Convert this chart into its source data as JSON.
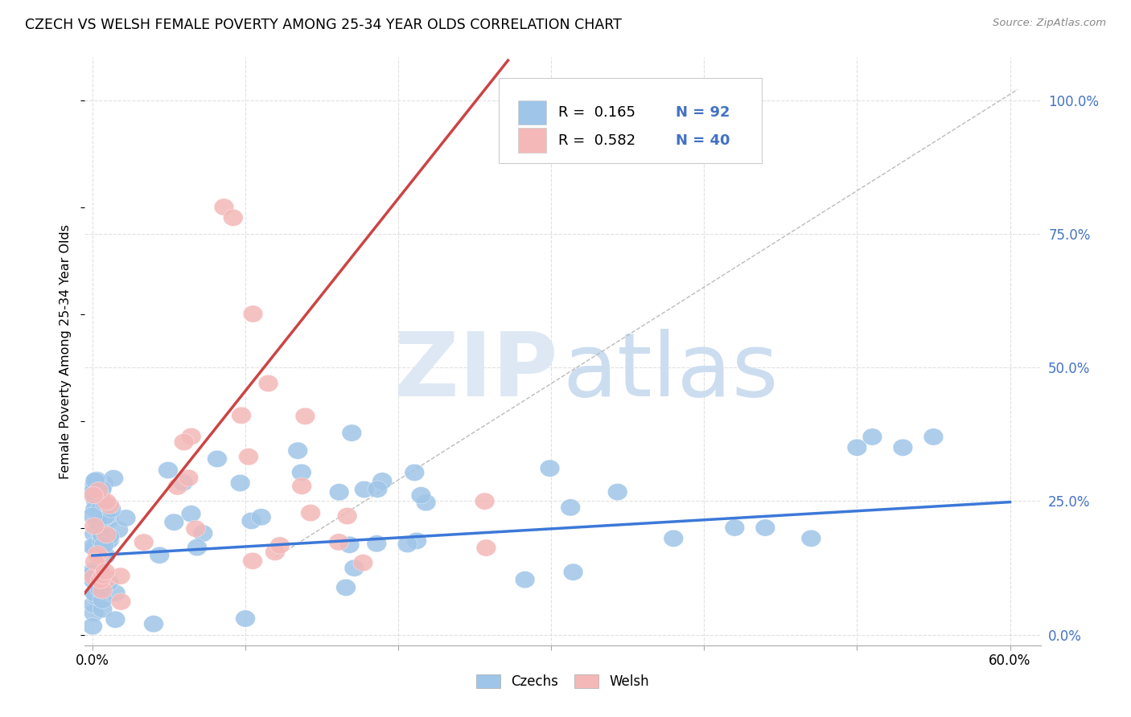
{
  "title": "CZECH VS WELSH FEMALE POVERTY AMONG 25-34 YEAR OLDS CORRELATION CHART",
  "source": "Source: ZipAtlas.com",
  "ylabel": "Female Poverty Among 25-34 Year Olds",
  "xlim": [
    -0.005,
    0.62
  ],
  "ylim": [
    -0.02,
    1.08
  ],
  "czechs_R": 0.165,
  "czechs_N": 92,
  "welsh_R": 0.582,
  "welsh_N": 40,
  "czech_color": "#9fc5e8",
  "welsh_color": "#f4b8b8",
  "czech_line_color": "#3c78d8",
  "welsh_line_color": "#cc4444",
  "legend_color": "#4472c4",
  "watermark_zip_color": "#d8e8f4",
  "watermark_atlas_color": "#c8ddf0",
  "grid_color": "#e0e0e0",
  "right_tick_color": "#4472c4",
  "ytick_vals": [
    0.0,
    0.25,
    0.5,
    0.75,
    1.0
  ],
  "ytick_labels": [
    "0.0%",
    "25.0%",
    "50.0%",
    "75.0%",
    "100.0%"
  ],
  "xtick_vals": [
    0.0,
    0.1,
    0.2,
    0.3,
    0.4,
    0.5,
    0.6
  ],
  "xtick_labels": [
    "0.0%",
    "",
    "",
    "",
    "",
    "",
    "60.0%"
  ],
  "czech_line_x": [
    0.0,
    0.6
  ],
  "czech_line_y": [
    0.148,
    0.248
  ],
  "welsh_line_x0": -0.01,
  "welsh_line_y0": 0.06,
  "welsh_line_slope": 3.6,
  "diag_line_x": [
    0.12,
    0.605
  ],
  "diag_line_y": [
    0.145,
    1.02
  ]
}
